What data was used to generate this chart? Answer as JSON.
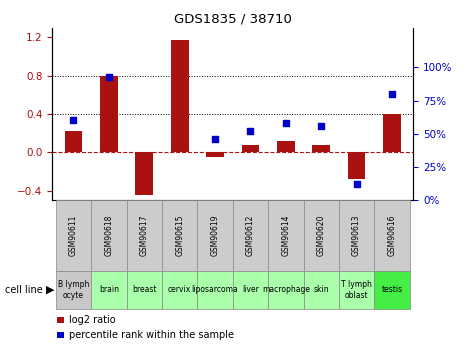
{
  "title": "GDS1835 / 38710",
  "gsm_labels": [
    "GSM90611",
    "GSM90618",
    "GSM90617",
    "GSM90615",
    "GSM90619",
    "GSM90612",
    "GSM90614",
    "GSM90620",
    "GSM90613",
    "GSM90616"
  ],
  "cell_labels": [
    "B lymph\nocyte",
    "brain",
    "breast",
    "cervix",
    "liposarcoma\n",
    "liver",
    "macrophage\n",
    "skin",
    "T lymph\noblast",
    "testis"
  ],
  "cell_bg_colors": [
    "#c8c8c8",
    "#aaffaa",
    "#aaffaa",
    "#aaffaa",
    "#aaffaa",
    "#aaffaa",
    "#aaffaa",
    "#aaffaa",
    "#aaffaa",
    "#44ee44"
  ],
  "gsm_bg_color": "#cccccc",
  "log2_ratio": [
    0.22,
    0.8,
    -0.45,
    1.17,
    -0.05,
    0.07,
    0.12,
    0.07,
    -0.28,
    0.4
  ],
  "percentile_rank": [
    0.6,
    0.93,
    null,
    null,
    0.46,
    0.52,
    0.58,
    0.56,
    0.12,
    0.8
  ],
  "bar_color": "#aa1111",
  "dot_color": "#0000cc",
  "left_ylim": [
    -0.5,
    1.3
  ],
  "right_ylim": [
    0,
    1.3
  ],
  "left_yticks": [
    -0.4,
    0.0,
    0.4,
    0.8,
    1.2
  ],
  "right_yticks": [
    0.0,
    0.25,
    0.5,
    0.75,
    1.0
  ],
  "right_yticklabels": [
    "0%",
    "25%",
    "50%",
    "75%",
    "100%"
  ],
  "hline_y": 0.0,
  "dotted_lines": [
    0.4,
    0.8
  ],
  "legend_items": [
    {
      "color": "#aa1111",
      "label": "log2 ratio"
    },
    {
      "color": "#0000cc",
      "label": "percentile rank within the sample"
    }
  ],
  "cell_line_label": "cell line"
}
